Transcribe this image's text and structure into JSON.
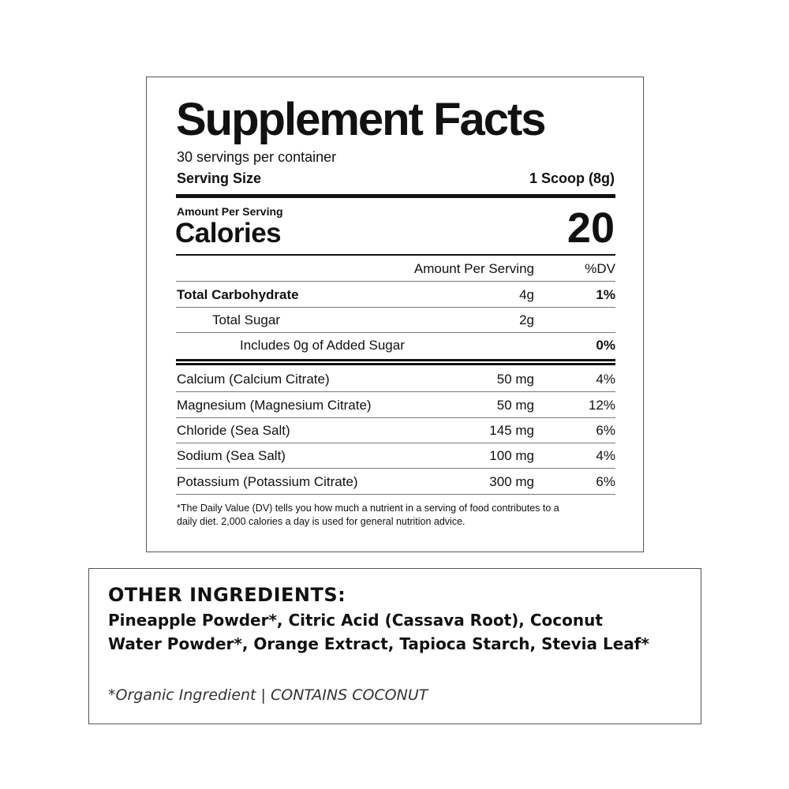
{
  "facts": {
    "title": "Supplement Facts",
    "servings": "30 servings per container",
    "serving_size_label": "Serving Size",
    "serving_size_value": "1 Scoop (8g)",
    "amount_per_serving": "Amount Per Serving",
    "calories_label": "Calories",
    "calories_value": "20",
    "col_amount": "Amount Per Serving",
    "col_dv": "%DV",
    "rows": [
      {
        "name": "Total Carbohydrate",
        "amount": "4g",
        "dv": "1%"
      },
      {
        "name": "Total Sugar",
        "amount": "2g",
        "dv": ""
      },
      {
        "name": "Includes 0g of Added Sugar",
        "amount": "",
        "dv": "0%"
      },
      {
        "name": "Calcium (Calcium Citrate)",
        "amount": "50 mg",
        "dv": "4%"
      },
      {
        "name": "Magnesium (Magnesium Citrate)",
        "amount": "50 mg",
        "dv": "12%"
      },
      {
        "name": "Chloride (Sea Salt)",
        "amount": "145 mg",
        "dv": "6%"
      },
      {
        "name": "Sodium (Sea Salt)",
        "amount": "100 mg",
        "dv": "4%"
      },
      {
        "name": "Potassium (Potassium Citrate)",
        "amount": "300 mg",
        "dv": "6%"
      }
    ],
    "footnote_1": "*The Daily Value (DV) tells you how much a nutrient in a serving of food contributes to a",
    "footnote_2": "daily diet. 2,000 calories a day is used for general nutrition advice."
  },
  "ingredients": {
    "heading": "OTHER INGREDIENTS:",
    "line_1": "Pineapple Powder*, Citric Acid (Cassava Root), Coconut",
    "line_2": "Water Powder*, Orange Extract, Tapioca Starch, Stevia Leaf*",
    "note": "*Organic Ingredient | CONTAINS COCONUT"
  }
}
